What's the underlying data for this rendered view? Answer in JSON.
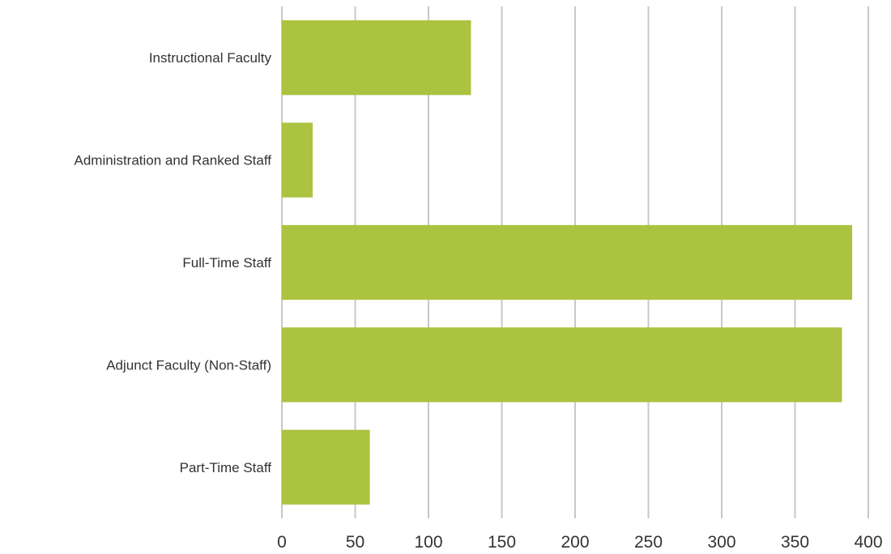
{
  "chart_data": {
    "type": "bar",
    "orientation": "horizontal",
    "title": "",
    "xlabel": "",
    "ylabel": "",
    "categories": [
      "Instructional Faculty",
      "Administration and Ranked Staff",
      "Full-Time Staff",
      "Adjunct Faculty (Non-Staff)",
      "Part-Time Staff"
    ],
    "values": [
      129,
      21,
      389,
      382,
      60
    ],
    "xlim": [
      0,
      400
    ],
    "xticks": [
      0,
      50,
      100,
      150,
      200,
      250,
      300,
      350,
      400
    ],
    "grid": "vertical",
    "legend": "none",
    "bar_color": "#abc340",
    "grid_color": "#c8c8c8",
    "text_color": "#333333"
  }
}
